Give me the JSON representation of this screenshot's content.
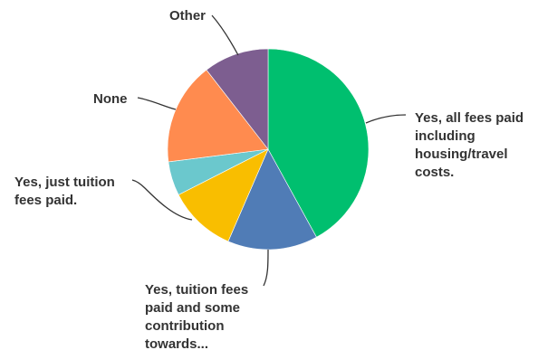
{
  "chart_data": {
    "type": "pie",
    "title": "",
    "start_angle_deg": 0,
    "direction": "clockwise",
    "slices": [
      {
        "label": "Yes, all fees paid including housing/travel costs.",
        "lines": [
          "Yes, all fees paid",
          "including",
          "housing/travel",
          "costs."
        ],
        "value": 42,
        "color": "#00bf6f"
      },
      {
        "label": "Yes, tuition fees paid and some contribution towards...",
        "lines": [
          "Yes, tuition fees",
          "paid and some",
          "contribution",
          "towards..."
        ],
        "value": 14.5,
        "color": "#507cb6"
      },
      {
        "label": "Yes, just tuition fees paid.",
        "lines": [
          "Yes, just tuition",
          "fees paid."
        ],
        "value": 11,
        "color": "#f9be00"
      },
      {
        "label": "",
        "lines": [],
        "value": 5.5,
        "color": "#6bc8cd"
      },
      {
        "label": "None",
        "lines": [
          "None"
        ],
        "value": 16.5,
        "color": "#ff8b4f"
      },
      {
        "label": "Other",
        "lines": [
          "Other"
        ],
        "value": 10.5,
        "color": "#7d5e90"
      }
    ]
  }
}
